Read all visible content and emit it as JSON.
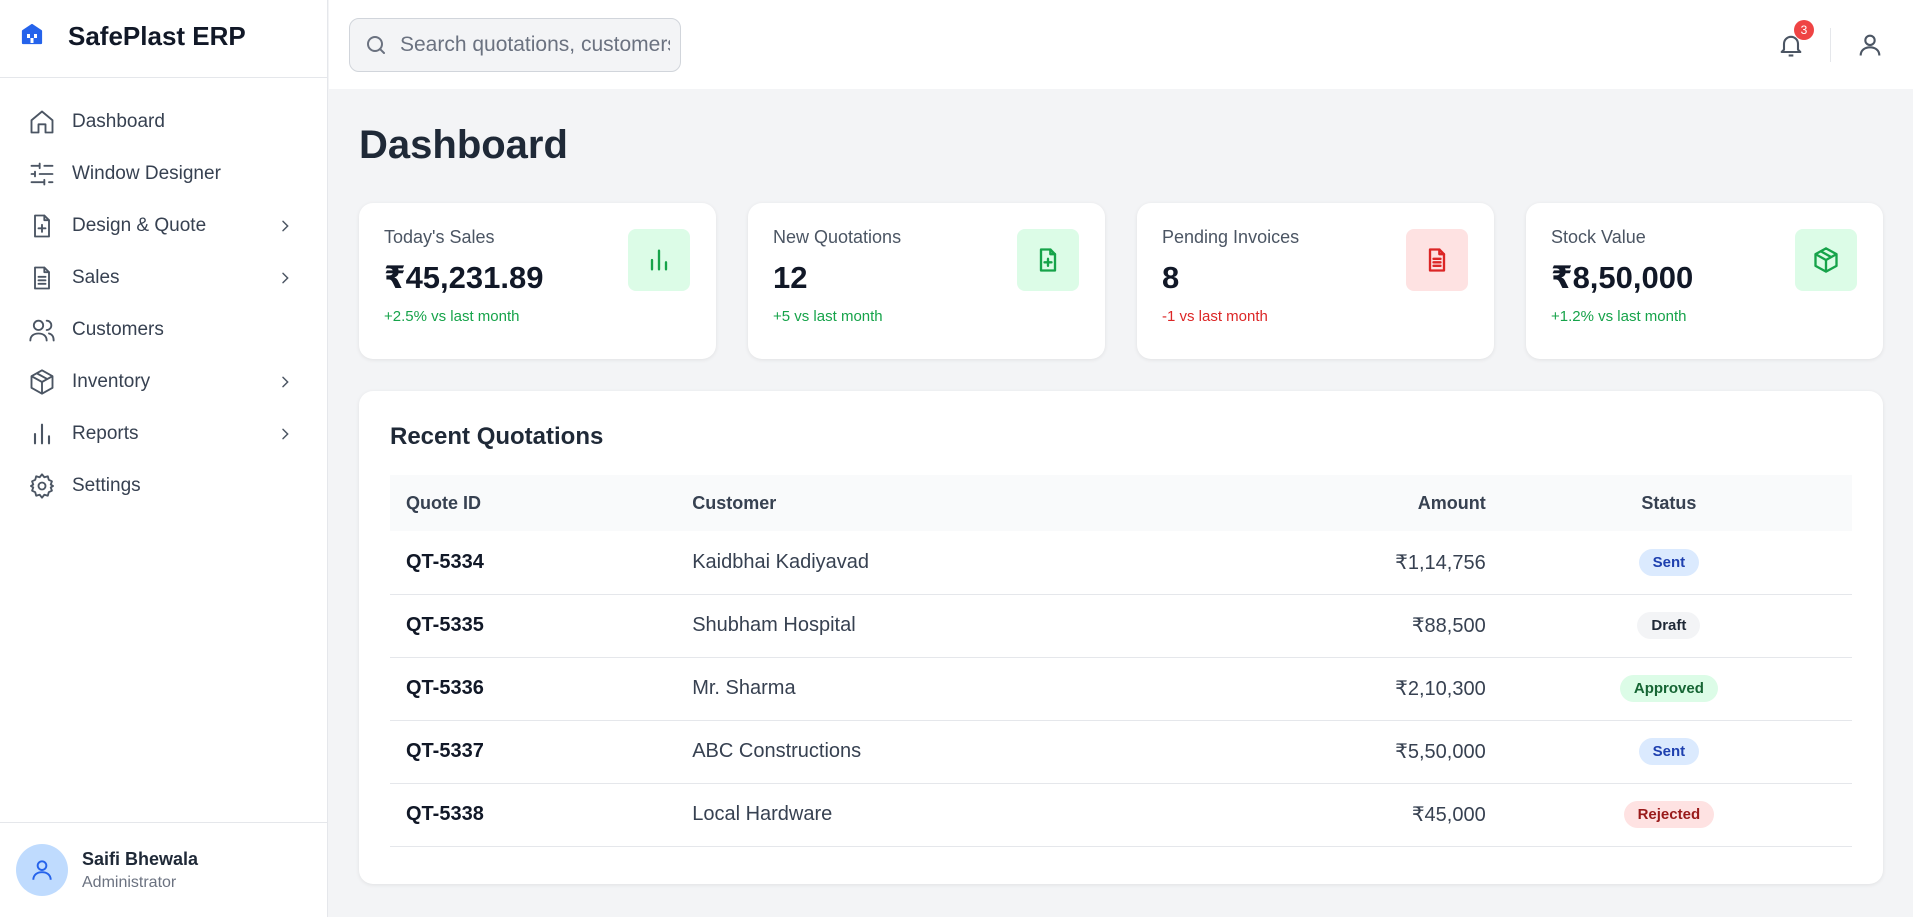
{
  "app": {
    "name": "SafePlast ERP",
    "logo_icon": "building-icon",
    "accent": "#2563eb"
  },
  "sidebar": {
    "items": [
      {
        "label": "Dashboard",
        "icon": "home-icon",
        "has_submenu": false
      },
      {
        "label": "Window Designer",
        "icon": "sliders-icon",
        "has_submenu": false
      },
      {
        "label": "Design & Quote",
        "icon": "file-plus-icon",
        "has_submenu": true
      },
      {
        "label": "Sales",
        "icon": "file-text-icon",
        "has_submenu": true
      },
      {
        "label": "Customers",
        "icon": "users-icon",
        "has_submenu": false
      },
      {
        "label": "Inventory",
        "icon": "package-icon",
        "has_submenu": true
      },
      {
        "label": "Reports",
        "icon": "bar-chart-icon",
        "has_submenu": true
      },
      {
        "label": "Settings",
        "icon": "gear-icon",
        "has_submenu": false
      }
    ],
    "user": {
      "name": "Saifi Bhewala",
      "role": "Administrator"
    }
  },
  "topbar": {
    "search_placeholder": "Search quotations, customers...",
    "notification_count": "3"
  },
  "main": {
    "title": "Dashboard",
    "stats": [
      {
        "label": "Today's Sales",
        "value": "₹45,231.89",
        "delta": "+2.5% vs last month",
        "trend": "up",
        "icon": "bar-chart-icon",
        "tone": "green"
      },
      {
        "label": "New Quotations",
        "value": "12",
        "delta": "+5 vs last month",
        "trend": "up",
        "icon": "file-plus-icon",
        "tone": "green"
      },
      {
        "label": "Pending Invoices",
        "value": "8",
        "delta": "-1 vs last month",
        "trend": "down",
        "icon": "file-text-icon",
        "tone": "red"
      },
      {
        "label": "Stock Value",
        "value": "₹8,50,000",
        "delta": "+1.2% vs last month",
        "trend": "up",
        "icon": "package-icon",
        "tone": "green"
      }
    ],
    "recent": {
      "title": "Recent Quotations",
      "columns": [
        "Quote ID",
        "Customer",
        "Amount",
        "Status"
      ],
      "rows": [
        {
          "id": "QT-5334",
          "customer": "Kaidbhai Kadiyavad",
          "amount": "₹1,14,756",
          "status": "Sent"
        },
        {
          "id": "QT-5335",
          "customer": "Shubham Hospital",
          "amount": "₹88,500",
          "status": "Draft"
        },
        {
          "id": "QT-5336",
          "customer": "Mr. Sharma",
          "amount": "₹2,10,300",
          "status": "Approved"
        },
        {
          "id": "QT-5337",
          "customer": "ABC Constructions",
          "amount": "₹5,50,000",
          "status": "Sent"
        },
        {
          "id": "QT-5338",
          "customer": "Local Hardware",
          "amount": "₹45,000",
          "status": "Rejected"
        }
      ]
    }
  },
  "status_colors": {
    "Sent": {
      "bg": "#dbeafe",
      "fg": "#1e40af"
    },
    "Draft": {
      "bg": "#f3f4f6",
      "fg": "#1f2937"
    },
    "Approved": {
      "bg": "#dcfce7",
      "fg": "#166534"
    },
    "Rejected": {
      "bg": "#fee2e2",
      "fg": "#991b1b"
    }
  }
}
